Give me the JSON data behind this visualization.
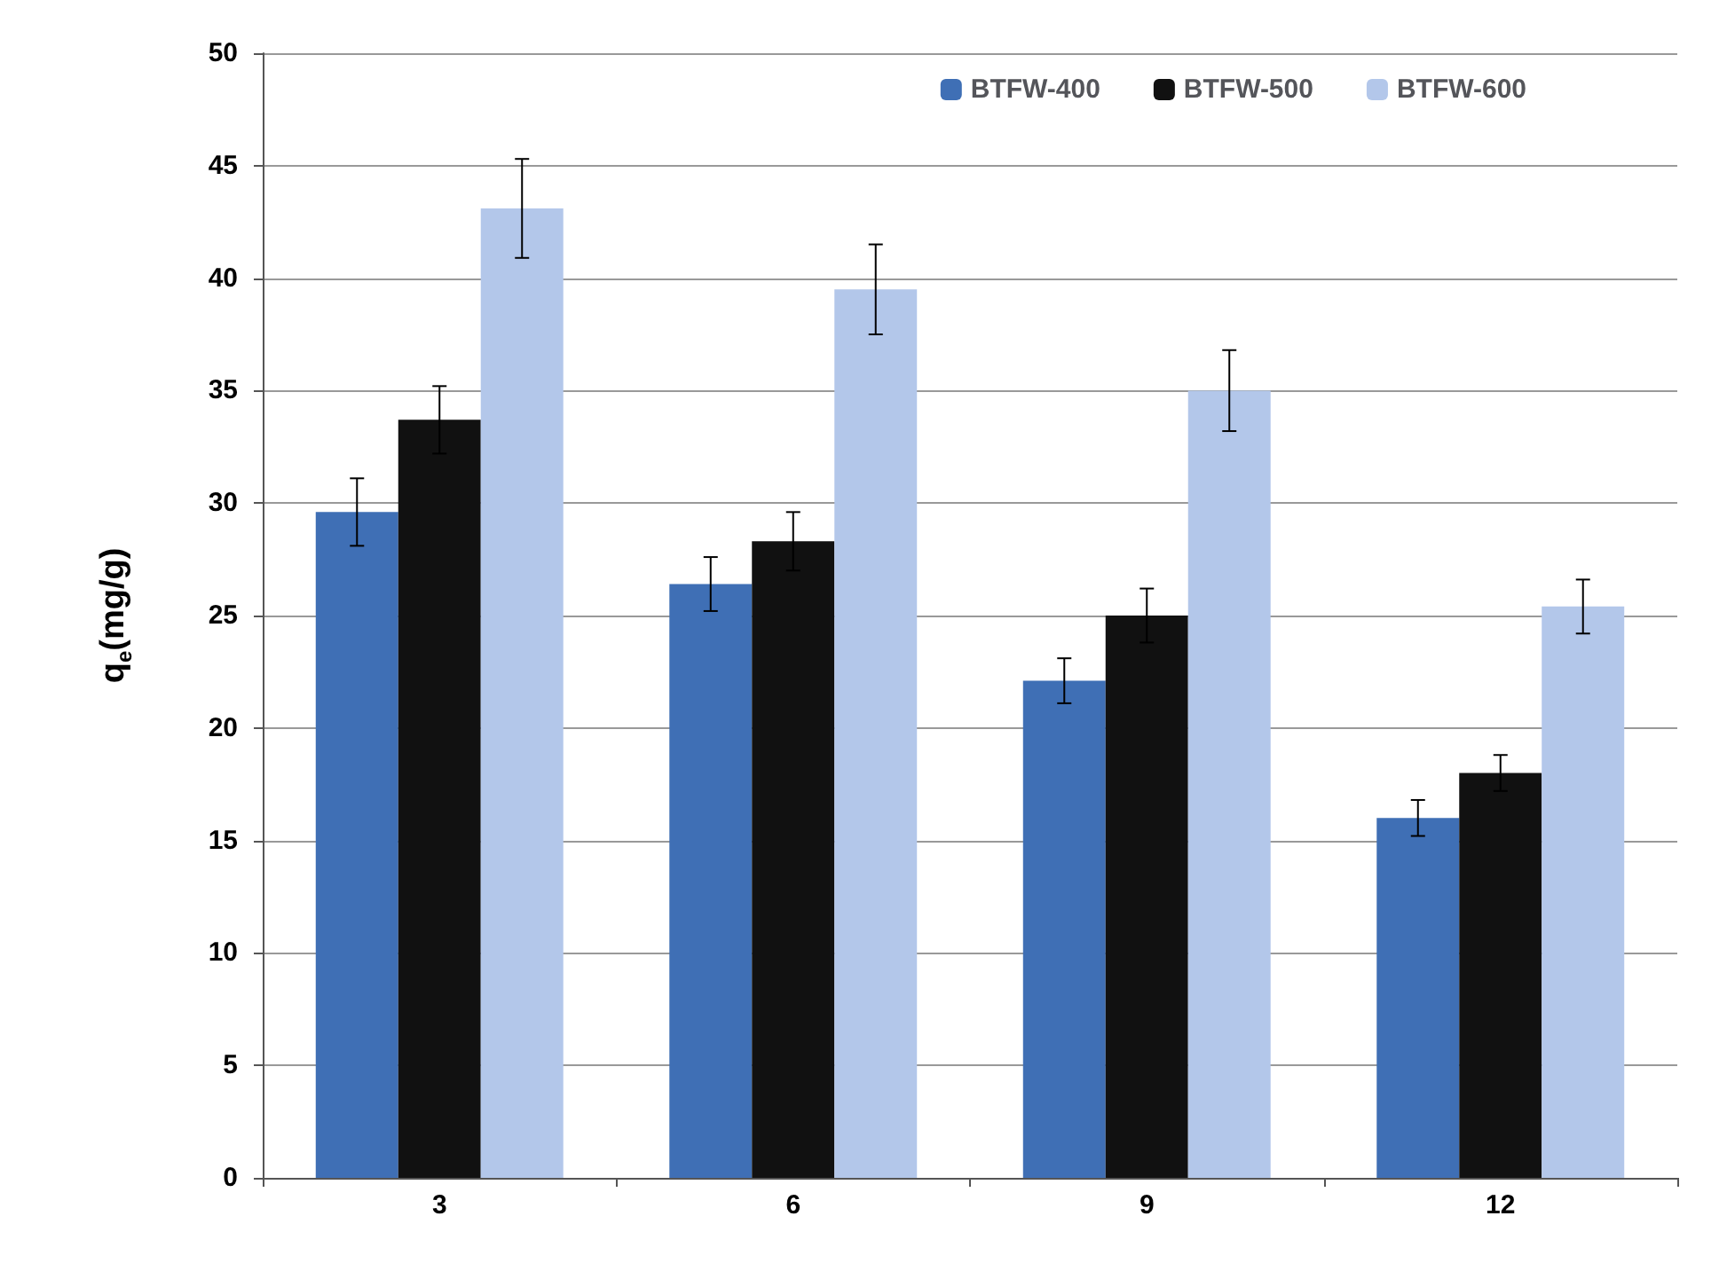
{
  "chart_data": {
    "type": "bar",
    "ylabel": "q$_{e}$(mg/g)",
    "categories": [
      "3",
      "6",
      "9",
      "12"
    ],
    "series": [
      {
        "name": "BTFW-400",
        "color": "#3f6fb5",
        "values": [
          29.6,
          26.4,
          22.1,
          16.0
        ],
        "errors": [
          1.5,
          1.2,
          1.0,
          0.8
        ]
      },
      {
        "name": "BTFW-500",
        "color": "#111111",
        "values": [
          33.7,
          28.3,
          25.0,
          18.0
        ],
        "errors": [
          1.5,
          1.3,
          1.2,
          0.8
        ]
      },
      {
        "name": "BTFW-600",
        "color": "#b3c7ea",
        "values": [
          43.1,
          39.5,
          35.0,
          25.4
        ],
        "errors": [
          2.2,
          2.0,
          1.8,
          1.2
        ]
      }
    ],
    "ylim": [
      0,
      50
    ],
    "yticks": [
      0,
      5,
      10,
      15,
      20,
      25,
      30,
      35,
      40,
      45,
      50
    ],
    "grid": "y",
    "legend": "top right"
  }
}
